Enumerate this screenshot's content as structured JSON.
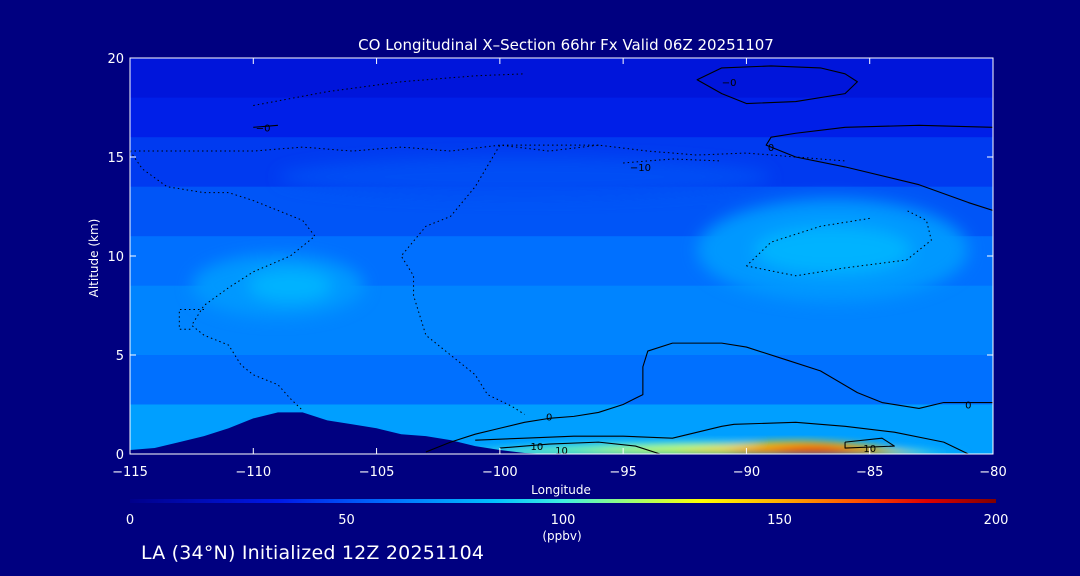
{
  "chart_data": {
    "type": "heatmap",
    "title": "CO Longitudinal X–Section 66hr  Fx Valid 06Z 20251107",
    "xlabel": "Longitude",
    "ylabel": "Altitude (km)",
    "xlim": [
      -115,
      -80
    ],
    "ylim": [
      0,
      20
    ],
    "x_ticks": [
      -115,
      -110,
      -105,
      -100,
      -95,
      -90,
      -85,
      -80
    ],
    "x_tick_labels": [
      "−115",
      "−110",
      "−105",
      "−100",
      "−95",
      "−90",
      "−85",
      "−80"
    ],
    "y_ticks": [
      0,
      5,
      10,
      15,
      20
    ],
    "y_tick_labels": [
      "0",
      "5",
      "10",
      "15",
      "20"
    ],
    "colorbar": {
      "min": 0,
      "max": 200,
      "ticks": [
        0,
        50,
        100,
        150,
        200
      ],
      "tick_labels": [
        "0",
        "50",
        "100",
        "150",
        "200"
      ],
      "units": "(ppbv)"
    },
    "fill_levels": [
      {
        "alt": [
          18.0,
          20.0
        ],
        "value": 30
      },
      {
        "alt": [
          16.0,
          18.0
        ],
        "value": 36
      },
      {
        "alt": [
          13.5,
          16.0
        ],
        "value": 44
      },
      {
        "alt": [
          11.0,
          13.5
        ],
        "value": 52
      },
      {
        "alt": [
          8.5,
          11.0
        ],
        "value": 60
      },
      {
        "alt": [
          5.0,
          8.5
        ],
        "value": 66
      },
      {
        "alt": [
          2.5,
          5.0
        ],
        "value": 60
      },
      {
        "alt": [
          0.0,
          2.5
        ],
        "value": 74
      }
    ],
    "upper_high_regions": [
      {
        "lon": -109,
        "alt": 8.5,
        "rx": 3.5,
        "ry": 1.6,
        "value": 72
      },
      {
        "lon": -108.5,
        "alt": 8.5,
        "rx": 1.7,
        "ry": 0.8,
        "value": 80
      },
      {
        "lon": -86.5,
        "alt": 10.3,
        "rx": 5.5,
        "ry": 2.6,
        "value": 72
      },
      {
        "lon": -86.5,
        "alt": 10.3,
        "rx": 3.2,
        "ry": 1.2,
        "value": 80
      },
      {
        "lon": -99,
        "alt": 14.0,
        "rx": 10,
        "ry": 1.0,
        "value": 50
      }
    ],
    "boundary_layer": [
      {
        "lon": [
          -103,
          -81
        ],
        "alt_top": 1.0,
        "value": 90
      },
      {
        "lon": [
          -101,
          -82
        ],
        "alt_top": 0.8,
        "value": 110
      },
      {
        "lon": [
          -97,
          -82.5
        ],
        "alt_top": 0.7,
        "value": 125
      },
      {
        "lon": [
          -93,
          -83
        ],
        "alt_top": 1.0,
        "value": 140
      },
      {
        "lon": [
          -91,
          -84
        ],
        "alt_top": 0.8,
        "value": 160
      },
      {
        "lon": [
          -89,
          -85.5
        ],
        "alt_top": 0.5,
        "value": 175
      }
    ],
    "terrain": [
      [
        -115,
        0.2
      ],
      [
        -114,
        0.3
      ],
      [
        -113,
        0.6
      ],
      [
        -112,
        0.9
      ],
      [
        -111,
        1.3
      ],
      [
        -110,
        1.8
      ],
      [
        -109,
        2.1
      ],
      [
        -108,
        2.1
      ],
      [
        -107,
        1.7
      ],
      [
        -106,
        1.5
      ],
      [
        -105,
        1.3
      ],
      [
        -104,
        1.0
      ],
      [
        -103,
        0.9
      ],
      [
        -102,
        0.7
      ],
      [
        -101,
        0.4
      ],
      [
        -100,
        0.2
      ],
      [
        -99,
        0.05
      ],
      [
        -98,
        0.0
      ],
      [
        -80,
        0.0
      ]
    ],
    "contour_labels": [
      {
        "text": "−0",
        "lon": -109.6,
        "alt": 16.5
      },
      {
        "text": "−10",
        "lon": -94.3,
        "alt": 14.5
      },
      {
        "text": "−0",
        "lon": -90.7,
        "alt": 18.8
      },
      {
        "text": "0",
        "lon": -89.0,
        "alt": 15.5
      },
      {
        "text": "0",
        "lon": -98.0,
        "alt": 1.9
      },
      {
        "text": "0",
        "lon": -81.0,
        "alt": 2.5
      },
      {
        "text": "10",
        "lon": -98.5,
        "alt": 0.4
      },
      {
        "text": "10",
        "lon": -97.5,
        "alt": 0.2
      },
      {
        "text": "10",
        "lon": -85.0,
        "alt": 0.3
      }
    ],
    "contours": [
      {
        "style": "solid",
        "points": [
          [
            -87,
            19.5
          ],
          [
            -86,
            19.2
          ],
          [
            -85.5,
            18.8
          ],
          [
            -86,
            18.2
          ],
          [
            -88,
            17.8
          ],
          [
            -90,
            17.7
          ],
          [
            -91,
            18.2
          ],
          [
            -92,
            18.9
          ],
          [
            -91,
            19.5
          ],
          [
            -89,
            19.6
          ],
          [
            -87,
            19.5
          ]
        ]
      },
      {
        "style": "solid",
        "points": [
          [
            -80,
            16.5
          ],
          [
            -83,
            16.6
          ],
          [
            -86,
            16.5
          ],
          [
            -88,
            16.2
          ],
          [
            -89,
            16.0
          ],
          [
            -89.2,
            15.6
          ],
          [
            -88,
            15.0
          ],
          [
            -86,
            14.5
          ],
          [
            -83,
            13.6
          ],
          [
            -81,
            12.7
          ],
          [
            -80,
            12.3
          ]
        ]
      },
      {
        "style": "solid",
        "points": [
          [
            -110,
            16.5
          ],
          [
            -109,
            16.6
          ]
        ]
      },
      {
        "style": "solid",
        "points": [
          [
            -80,
            2.6
          ],
          [
            -81,
            2.6
          ],
          [
            -82,
            2.6
          ],
          [
            -83,
            2.3
          ],
          [
            -84.5,
            2.6
          ],
          [
            -85.5,
            3.1
          ],
          [
            -87,
            4.2
          ],
          [
            -88.5,
            4.8
          ],
          [
            -90,
            5.4
          ],
          [
            -91,
            5.6
          ],
          [
            -93,
            5.6
          ],
          [
            -94,
            5.2
          ],
          [
            -94.2,
            4.4
          ],
          [
            -94.2,
            3.0
          ],
          [
            -95,
            2.5
          ],
          [
            -96,
            2.1
          ],
          [
            -97,
            1.9
          ],
          [
            -98,
            1.8
          ],
          [
            -99,
            1.6
          ],
          [
            -100,
            1.3
          ],
          [
            -101,
            1.0
          ],
          [
            -102,
            0.6
          ],
          [
            -103,
            0.1
          ]
        ]
      },
      {
        "style": "solid",
        "points": [
          [
            -101,
            0.7
          ],
          [
            -99,
            0.8
          ],
          [
            -97,
            0.9
          ],
          [
            -95,
            0.9
          ],
          [
            -93,
            0.8
          ],
          [
            -91,
            1.4
          ],
          [
            -90.5,
            1.5
          ],
          [
            -88,
            1.6
          ],
          [
            -86,
            1.4
          ],
          [
            -84,
            1.1
          ],
          [
            -82,
            0.6
          ],
          [
            -81,
            0.0
          ]
        ]
      },
      {
        "style": "solid",
        "points": [
          [
            -100,
            0.3
          ],
          [
            -98,
            0.5
          ],
          [
            -96,
            0.6
          ],
          [
            -94.5,
            0.4
          ],
          [
            -93.5,
            0.0
          ]
        ]
      },
      {
        "style": "solid",
        "points": [
          [
            -86,
            0.6
          ],
          [
            -84.5,
            0.8
          ],
          [
            -84,
            0.4
          ],
          [
            -86,
            0.3
          ],
          [
            -86,
            0.6
          ]
        ]
      },
      {
        "style": "dotted",
        "points": [
          [
            -115,
            15.3
          ],
          [
            -113,
            15.3
          ],
          [
            -110,
            15.3
          ],
          [
            -108,
            15.5
          ],
          [
            -106,
            15.3
          ],
          [
            -104,
            15.5
          ],
          [
            -102,
            15.3
          ],
          [
            -100,
            15.6
          ],
          [
            -98,
            15.3
          ],
          [
            -96,
            15.6
          ],
          [
            -94,
            15.3
          ],
          [
            -92,
            15.1
          ],
          [
            -90,
            15.2
          ],
          [
            -88,
            15.0
          ],
          [
            -86,
            14.8
          ]
        ]
      },
      {
        "style": "dotted",
        "points": [
          [
            -115,
            15.3
          ],
          [
            -114.5,
            14.4
          ],
          [
            -113.5,
            13.5
          ],
          [
            -112,
            13.2
          ],
          [
            -111,
            13.2
          ],
          [
            -110,
            12.8
          ],
          [
            -109,
            12.3
          ],
          [
            -108,
            11.8
          ],
          [
            -107.5,
            11.0
          ],
          [
            -108.5,
            10.0
          ],
          [
            -110,
            9.2
          ],
          [
            -111,
            8.4
          ],
          [
            -112,
            7.5
          ],
          [
            -112.5,
            6.5
          ],
          [
            -112,
            6.0
          ],
          [
            -111,
            5.5
          ],
          [
            -110.5,
            4.5
          ],
          [
            -110,
            4.0
          ],
          [
            -109,
            3.5
          ],
          [
            -108.5,
            2.8
          ],
          [
            -108,
            2.2
          ]
        ]
      },
      {
        "style": "dotted",
        "points": [
          [
            -112,
            7.3
          ],
          [
            -113,
            7.3
          ],
          [
            -113,
            6.3
          ],
          [
            -112.5,
            6.3
          ]
        ]
      },
      {
        "style": "dotted",
        "points": [
          [
            -96,
            15.6
          ],
          [
            -98,
            15.6
          ],
          [
            -100,
            15.6
          ],
          [
            -101,
            13.5
          ],
          [
            -102,
            12.0
          ],
          [
            -103,
            11.5
          ],
          [
            -104,
            10.0
          ],
          [
            -103.5,
            9.0
          ],
          [
            -103.5,
            8.0
          ],
          [
            -103,
            6.0
          ],
          [
            -102,
            5.0
          ],
          [
            -101,
            4.0
          ],
          [
            -100.5,
            3.0
          ],
          [
            -99.5,
            2.4
          ],
          [
            -99,
            2.0
          ]
        ]
      },
      {
        "style": "dotted",
        "points": [
          [
            -85,
            11.9
          ],
          [
            -87,
            11.5
          ],
          [
            -89,
            10.7
          ],
          [
            -90,
            9.5
          ]
        ]
      },
      {
        "style": "dotted",
        "points": [
          [
            -90,
            9.5
          ],
          [
            -88,
            9.0
          ],
          [
            -86,
            9.4
          ],
          [
            -83.5,
            9.8
          ],
          [
            -82.5,
            10.8
          ],
          [
            -82.7,
            11.8
          ],
          [
            -83.5,
            12.3
          ]
        ]
      },
      {
        "style": "dotted",
        "points": [
          [
            -110,
            17.6
          ],
          [
            -107,
            18.3
          ],
          [
            -104,
            18.8
          ],
          [
            -101,
            19.1
          ],
          [
            -99,
            19.2
          ]
        ]
      },
      {
        "style": "dotted",
        "points": [
          [
            -95,
            14.7
          ],
          [
            -93,
            14.9
          ],
          [
            -91,
            14.8
          ]
        ]
      }
    ]
  },
  "caption": "LA (34°N) Initialized 12Z 20251104"
}
